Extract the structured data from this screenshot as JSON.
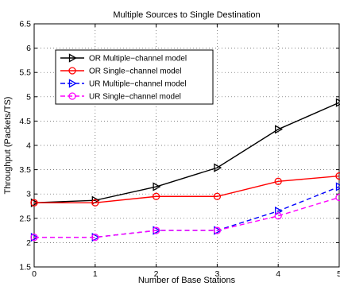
{
  "chart_data": {
    "type": "line",
    "title": "Multiple Sources to Single Destination",
    "xlabel": "Number of Base Stations",
    "ylabel": "Throughput (Packets/TS)",
    "x": [
      0,
      1,
      2,
      3,
      4,
      5
    ],
    "xlim": [
      0,
      5
    ],
    "ylim": [
      1.5,
      6.5
    ],
    "xticks": [
      "0",
      "1",
      "2",
      "3",
      "4",
      "5"
    ],
    "yticks": [
      "1.5",
      "2",
      "2.5",
      "3",
      "3.5",
      "4",
      "4.5",
      "5",
      "5.5",
      "6",
      "6.5"
    ],
    "grid": true,
    "legend_position": "top-left",
    "series": [
      {
        "name": "OR Multiple−channel model",
        "values": [
          2.82,
          2.87,
          3.15,
          3.54,
          4.33,
          4.88
        ],
        "color": "#000000",
        "dash": "solid",
        "marker": "triangle-right"
      },
      {
        "name": "OR Single−channel model",
        "values": [
          2.82,
          2.82,
          2.95,
          2.95,
          3.26,
          3.37
        ],
        "color": "#ff0000",
        "dash": "solid",
        "marker": "circle"
      },
      {
        "name": "UR Multiple−channel model",
        "values": [
          2.11,
          2.11,
          2.25,
          2.25,
          2.65,
          3.15
        ],
        "color": "#0000ff",
        "dash": "dashed",
        "marker": "triangle-right"
      },
      {
        "name": "UR Single−channel model",
        "values": [
          2.11,
          2.11,
          2.25,
          2.25,
          2.55,
          2.93
        ],
        "color": "#ff00ff",
        "dash": "dashed",
        "marker": "circle"
      }
    ]
  }
}
